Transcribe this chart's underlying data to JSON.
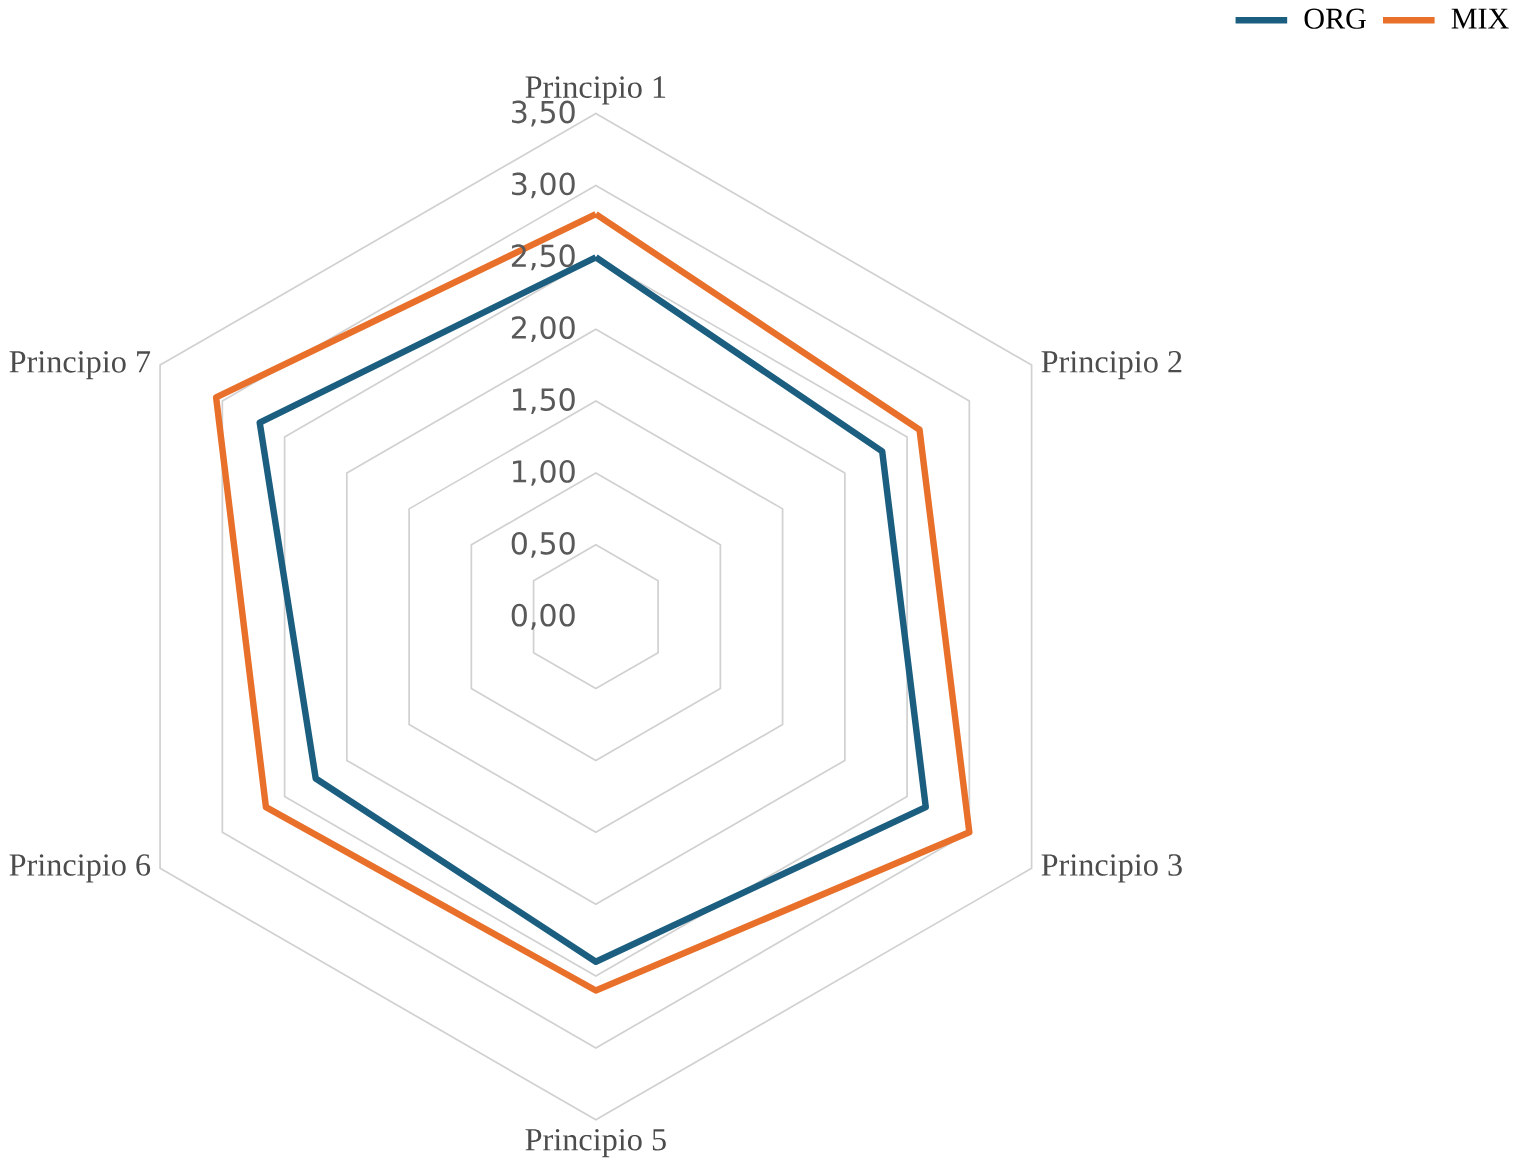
{
  "chart_data": {
    "type": "radar",
    "categories": [
      "Principio 1",
      "Principio 2",
      "Principio 3",
      "Principio 5",
      "Principio 6",
      "Principio 7"
    ],
    "series": [
      {
        "name": "ORG",
        "color": "#1b5e7f",
        "values": [
          2.5,
          2.3,
          2.65,
          2.4,
          2.25,
          2.7
        ]
      },
      {
        "name": "MIX",
        "color": "#e8702a",
        "values": [
          2.8,
          2.6,
          3.0,
          2.6,
          2.65,
          3.05
        ]
      }
    ],
    "ylim": [
      0,
      3.5
    ],
    "yticks": [
      {
        "value": 0,
        "label": "0,00"
      },
      {
        "value": 0.5,
        "label": "0,50"
      },
      {
        "value": 1,
        "label": "1,00"
      },
      {
        "value": 1.5,
        "label": "1,50"
      },
      {
        "value": 2,
        "label": "2,00"
      },
      {
        "value": 2.5,
        "label": "2,50"
      },
      {
        "value": 3,
        "label": "3,00"
      },
      {
        "value": 3.5,
        "label": "3,50"
      }
    ],
    "grid": true,
    "legend": "top right",
    "marker": "none",
    "line_style": "solid"
  }
}
